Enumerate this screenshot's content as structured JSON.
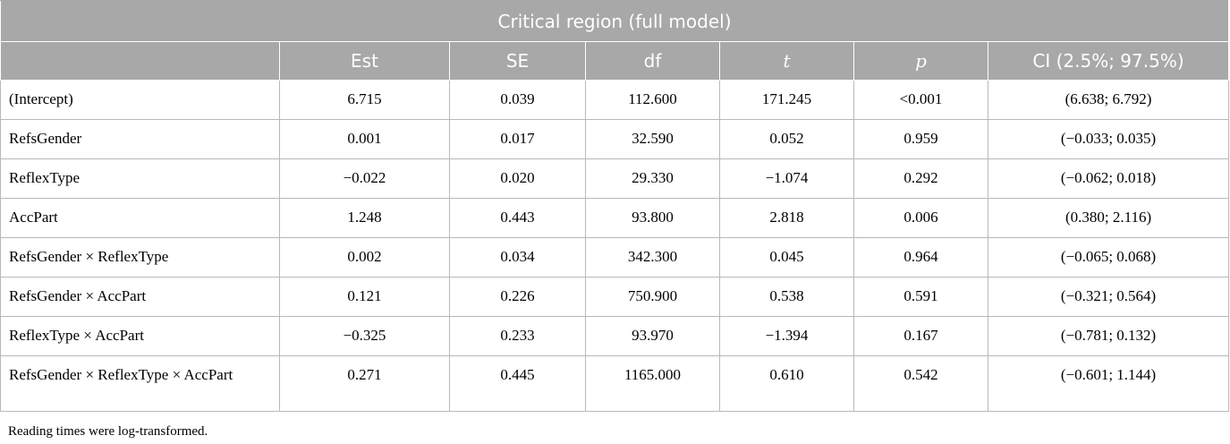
{
  "table": {
    "title": "Critical region (full model)",
    "columns": [
      "",
      "Est",
      "SE",
      "df",
      "t",
      "p",
      "CI (2.5%; 97.5%)"
    ],
    "rows": [
      {
        "term": "(Intercept)",
        "est": "6.715",
        "se": "0.039",
        "df": "112.600",
        "t": "171.245",
        "p": "<0.001",
        "ci": "(6.638; 6.792)"
      },
      {
        "term": "RefsGender",
        "est": "0.001",
        "se": "0.017",
        "df": "32.590",
        "t": "0.052",
        "p": "0.959",
        "ci": "(−0.033; 0.035)"
      },
      {
        "term": "ReflexType",
        "est": "−0.022",
        "se": "0.020",
        "df": "29.330",
        "t": "−1.074",
        "p": "0.292",
        "ci": "(−0.062; 0.018)"
      },
      {
        "term": "AccPart",
        "est": "1.248",
        "se": "0.443",
        "df": "93.800",
        "t": "2.818",
        "p": "0.006",
        "ci": "(0.380; 2.116)"
      },
      {
        "term": "RefsGender × ReflexType",
        "est": "0.002",
        "se": "0.034",
        "df": "342.300",
        "t": "0.045",
        "p": "0.964",
        "ci": "(−0.065; 0.068)"
      },
      {
        "term": "RefsGender × AccPart",
        "est": "0.121",
        "se": "0.226",
        "df": "750.900",
        "t": "0.538",
        "p": "0.591",
        "ci": "(−0.321; 0.564)"
      },
      {
        "term": "ReflexType × AccPart",
        "est": "−0.325",
        "se": "0.233",
        "df": "93.970",
        "t": "−1.394",
        "p": "0.167",
        "ci": "(−0.781; 0.132)"
      },
      {
        "term": "RefsGender × ReflexType × AccPart",
        "est": "0.271",
        "se": "0.445",
        "df": "1165.000",
        "t": "0.610",
        "p": "0.542",
        "ci": "(−0.601; 1.144)"
      }
    ],
    "footnote": "Reading times were log-transformed."
  }
}
